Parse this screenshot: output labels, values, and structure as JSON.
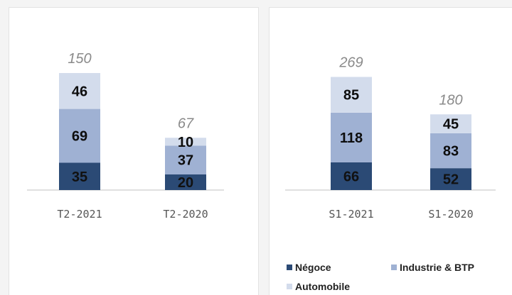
{
  "colors": {
    "negoce": "#2b4a75",
    "industrie": "#9fb1d3",
    "automobile": "#d3dcec"
  },
  "legend": {
    "negoce": "Négoce",
    "industrie": "Industrie & BTP",
    "automobile": "Automobile"
  },
  "chart_data": [
    {
      "type": "bar",
      "stacked": true,
      "categories": [
        "T2-2021",
        "T2-2020"
      ],
      "series": [
        {
          "name": "Négoce",
          "values": [
            35,
            20
          ]
        },
        {
          "name": "Industrie & BTP",
          "values": [
            69,
            37
          ]
        },
        {
          "name": "Automobile",
          "values": [
            46,
            10
          ]
        }
      ],
      "totals": [
        150,
        67
      ],
      "ylim": [
        0,
        150
      ],
      "grid": false
    },
    {
      "type": "bar",
      "stacked": true,
      "categories": [
        "S1-2021",
        "S1-2020"
      ],
      "series": [
        {
          "name": "Négoce",
          "values": [
            66,
            52
          ]
        },
        {
          "name": "Industrie & BTP",
          "values": [
            118,
            83
          ]
        },
        {
          "name": "Automobile",
          "values": [
            85,
            45
          ]
        }
      ],
      "totals": [
        269,
        180
      ],
      "ylim": [
        0,
        269
      ],
      "grid": false,
      "legend_position": "bottom"
    }
  ]
}
